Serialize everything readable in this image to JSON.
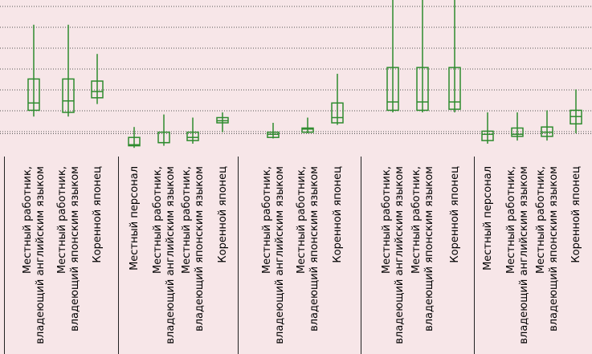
{
  "chart_data": {
    "type": "box",
    "title": "",
    "xlabel": "",
    "ylabel": "",
    "ylim": [
      0,
      7
    ],
    "grid": true,
    "color": "#2e8b2e",
    "background": "#f7e6e8",
    "groups": [
      {
        "items": [
          {
            "label": "Местный работник, владеющий английским языком",
            "min": 0.8,
            "q1": 1.1,
            "median": 1.45,
            "q3": 2.6,
            "max": 5.2
          },
          {
            "label": "Местный работник, владеющий японским языком",
            "min": 0.8,
            "q1": 1.0,
            "median": 1.55,
            "q3": 2.6,
            "max": 5.2
          },
          {
            "label": "Коренной японец",
            "min": 1.4,
            "q1": 1.7,
            "median": 2.0,
            "q3": 2.5,
            "max": 3.8
          }
        ]
      },
      {
        "items": [
          {
            "label": "Местный персонал",
            "min": -0.7,
            "q1": -0.6,
            "median": -0.55,
            "q3": -0.2,
            "max": 0.3
          },
          {
            "label": "Местный работник, владеющий английским языком",
            "min": -0.6,
            "q1": -0.45,
            "median": -0.45,
            "q3": 0.05,
            "max": 0.9
          },
          {
            "label": "Местный работник, владеющий японским языком",
            "min": -0.5,
            "q1": -0.35,
            "median": -0.2,
            "q3": 0.05,
            "max": 0.75
          },
          {
            "label": "Коренной японец",
            "min": 0.05,
            "q1": 0.5,
            "median": 0.6,
            "q3": 0.75,
            "max": 1.0
          }
        ]
      },
      {
        "items": [
          {
            "label": "Местный работник, владеющий английским языком",
            "min": -0.25,
            "q1": -0.2,
            "median": -0.05,
            "q3": 0.05,
            "max": 0.5
          },
          {
            "label": "Местный работник, владеющий японским языком",
            "min": 0.0,
            "q1": 0.05,
            "median": 0.2,
            "q3": 0.25,
            "max": 0.75
          },
          {
            "label": "Коренной японец",
            "min": 0.4,
            "q1": 0.5,
            "median": 0.75,
            "q3": 1.45,
            "max": 2.85
          }
        ]
      },
      {
        "items": [
          {
            "label": "Местный работник, владеющий английским языком",
            "min": 1.0,
            "q1": 1.1,
            "median": 1.5,
            "q3": 3.15,
            "max": 6.5
          },
          {
            "label": "Местный работник, владеющий японским языком",
            "min": 1.0,
            "q1": 1.1,
            "median": 1.5,
            "q3": 3.15,
            "max": 6.5
          },
          {
            "label": "Коренной японец",
            "min": 1.0,
            "q1": 1.15,
            "median": 1.5,
            "q3": 3.15,
            "max": 6.5
          }
        ]
      },
      {
        "items": [
          {
            "label": "Местный персонал",
            "min": -0.5,
            "q1": -0.35,
            "median": -0.05,
            "q3": 0.1,
            "max": 1.0
          },
          {
            "label": "Местный работник, владеющий английским языком",
            "min": -0.35,
            "q1": -0.15,
            "median": -0.05,
            "q3": 0.25,
            "max": 1.0
          },
          {
            "label": "Местный работник, владеющий японским языком",
            "min": -0.35,
            "q1": -0.15,
            "median": 0.05,
            "q3": 0.3,
            "max": 1.1
          },
          {
            "label": "Коренной японец",
            "min": 0.0,
            "q1": 0.45,
            "median": 0.8,
            "q3": 1.1,
            "max": 2.1
          }
        ]
      }
    ]
  }
}
